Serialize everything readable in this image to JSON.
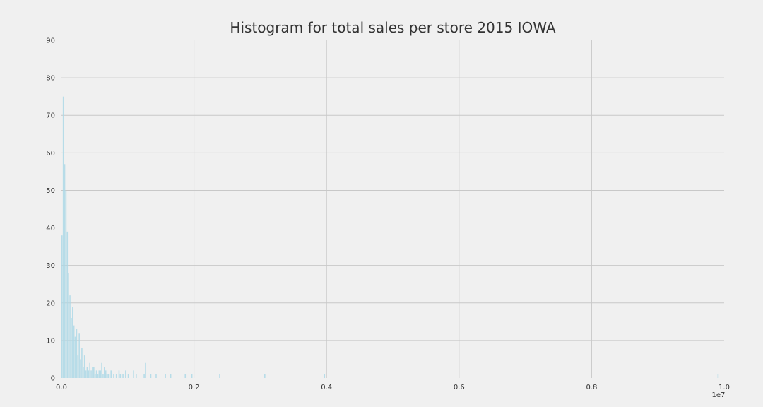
{
  "chart_data": {
    "type": "bar",
    "title": "Histogram for total sales per store 2015 IOWA",
    "xlabel": "",
    "ylabel": "",
    "x_offset_label": "1e7",
    "xlim": [
      0,
      1.0
    ],
    "ylim": [
      0,
      90
    ],
    "x_ticks": [
      0.0,
      0.2,
      0.4,
      0.6,
      0.8,
      1.0
    ],
    "x_tick_labels": [
      "0.0",
      "0.2",
      "0.4",
      "0.6",
      "0.8",
      "1.0"
    ],
    "y_ticks": [
      0,
      10,
      20,
      30,
      40,
      50,
      60,
      70,
      80,
      90
    ],
    "y_tick_labels": [
      "0",
      "10",
      "20",
      "30",
      "40",
      "50",
      "60",
      "70",
      "80",
      "90"
    ],
    "grid": true,
    "bar_color": "#add8e6",
    "background": "#f0f0f0",
    "bin_width": 0.002,
    "bins": [
      {
        "x": 0.0,
        "y": 38
      },
      {
        "x": 0.002,
        "y": 75
      },
      {
        "x": 0.004,
        "y": 57
      },
      {
        "x": 0.006,
        "y": 50
      },
      {
        "x": 0.008,
        "y": 39
      },
      {
        "x": 0.01,
        "y": 28
      },
      {
        "x": 0.012,
        "y": 22
      },
      {
        "x": 0.014,
        "y": 16
      },
      {
        "x": 0.016,
        "y": 19
      },
      {
        "x": 0.018,
        "y": 14
      },
      {
        "x": 0.02,
        "y": 11
      },
      {
        "x": 0.022,
        "y": 13
      },
      {
        "x": 0.024,
        "y": 6
      },
      {
        "x": 0.026,
        "y": 12
      },
      {
        "x": 0.028,
        "y": 5
      },
      {
        "x": 0.03,
        "y": 8
      },
      {
        "x": 0.032,
        "y": 3
      },
      {
        "x": 0.034,
        "y": 6
      },
      {
        "x": 0.036,
        "y": 2
      },
      {
        "x": 0.038,
        "y": 3
      },
      {
        "x": 0.04,
        "y": 2
      },
      {
        "x": 0.042,
        "y": 4
      },
      {
        "x": 0.044,
        "y": 2
      },
      {
        "x": 0.046,
        "y": 3
      },
      {
        "x": 0.048,
        "y": 3
      },
      {
        "x": 0.05,
        "y": 1
      },
      {
        "x": 0.052,
        "y": 2
      },
      {
        "x": 0.054,
        "y": 1
      },
      {
        "x": 0.056,
        "y": 2
      },
      {
        "x": 0.058,
        "y": 2
      },
      {
        "x": 0.06,
        "y": 4
      },
      {
        "x": 0.062,
        "y": 1
      },
      {
        "x": 0.064,
        "y": 3
      },
      {
        "x": 0.066,
        "y": 2
      },
      {
        "x": 0.068,
        "y": 1
      },
      {
        "x": 0.07,
        "y": 1
      },
      {
        "x": 0.074,
        "y": 2
      },
      {
        "x": 0.078,
        "y": 1
      },
      {
        "x": 0.082,
        "y": 1
      },
      {
        "x": 0.086,
        "y": 2
      },
      {
        "x": 0.088,
        "y": 1
      },
      {
        "x": 0.092,
        "y": 1
      },
      {
        "x": 0.096,
        "y": 2
      },
      {
        "x": 0.1,
        "y": 1
      },
      {
        "x": 0.108,
        "y": 2
      },
      {
        "x": 0.112,
        "y": 1
      },
      {
        "x": 0.124,
        "y": 1
      },
      {
        "x": 0.126,
        "y": 4
      },
      {
        "x": 0.134,
        "y": 1
      },
      {
        "x": 0.142,
        "y": 1
      },
      {
        "x": 0.156,
        "y": 1
      },
      {
        "x": 0.164,
        "y": 1
      },
      {
        "x": 0.186,
        "y": 1
      },
      {
        "x": 0.196,
        "y": 1
      },
      {
        "x": 0.238,
        "y": 1
      },
      {
        "x": 0.306,
        "y": 1
      },
      {
        "x": 0.396,
        "y": 1
      },
      {
        "x": 0.99,
        "y": 1
      }
    ]
  }
}
